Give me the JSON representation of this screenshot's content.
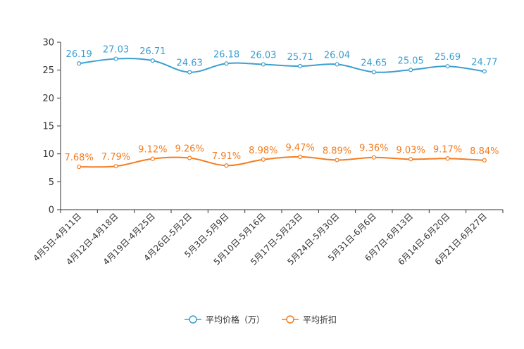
{
  "chart_data": {
    "type": "line",
    "title": "",
    "xlabel": "",
    "ylabel": "",
    "ylim": [
      0,
      30
    ],
    "yticks": [
      0,
      5,
      10,
      15,
      20,
      25,
      30
    ],
    "categories": [
      "4月5日-4月11日",
      "4月12日-4月18日",
      "4月19日-4月25日",
      "4月26日-5月2日",
      "5月3日-5月9日",
      "5月10日-5月16日",
      "5月17日-5月23日",
      "5月24日-5月30日",
      "5月31日-6月6日",
      "6月7日-6月13日",
      "6月14日-6月20日",
      "6月21日-6月27日"
    ],
    "series": [
      {
        "name": "平均价格（万）",
        "color": "#3a9fd1",
        "values": [
          26.19,
          27.03,
          26.71,
          24.63,
          26.18,
          26.03,
          25.71,
          26.04,
          24.65,
          25.05,
          25.69,
          24.77
        ],
        "labels": [
          "26.19",
          "27.03",
          "26.71",
          "24.63",
          "26.18",
          "26.03",
          "25.71",
          "26.04",
          "24.65",
          "25.05",
          "25.69",
          "24.77"
        ]
      },
      {
        "name": "平均折扣",
        "color": "#f57c1f",
        "values": [
          7.68,
          7.79,
          9.12,
          9.26,
          7.91,
          8.98,
          9.47,
          8.89,
          9.36,
          9.03,
          9.17,
          8.84
        ],
        "labels": [
          "7.68%",
          "7.79%",
          "9.12%",
          "9.26%",
          "7.91%",
          "8.98%",
          "9.47%",
          "8.89%",
          "9.36%",
          "9.03%",
          "9.17%",
          "8.84%"
        ]
      }
    ],
    "legend_position": "bottom-center"
  }
}
